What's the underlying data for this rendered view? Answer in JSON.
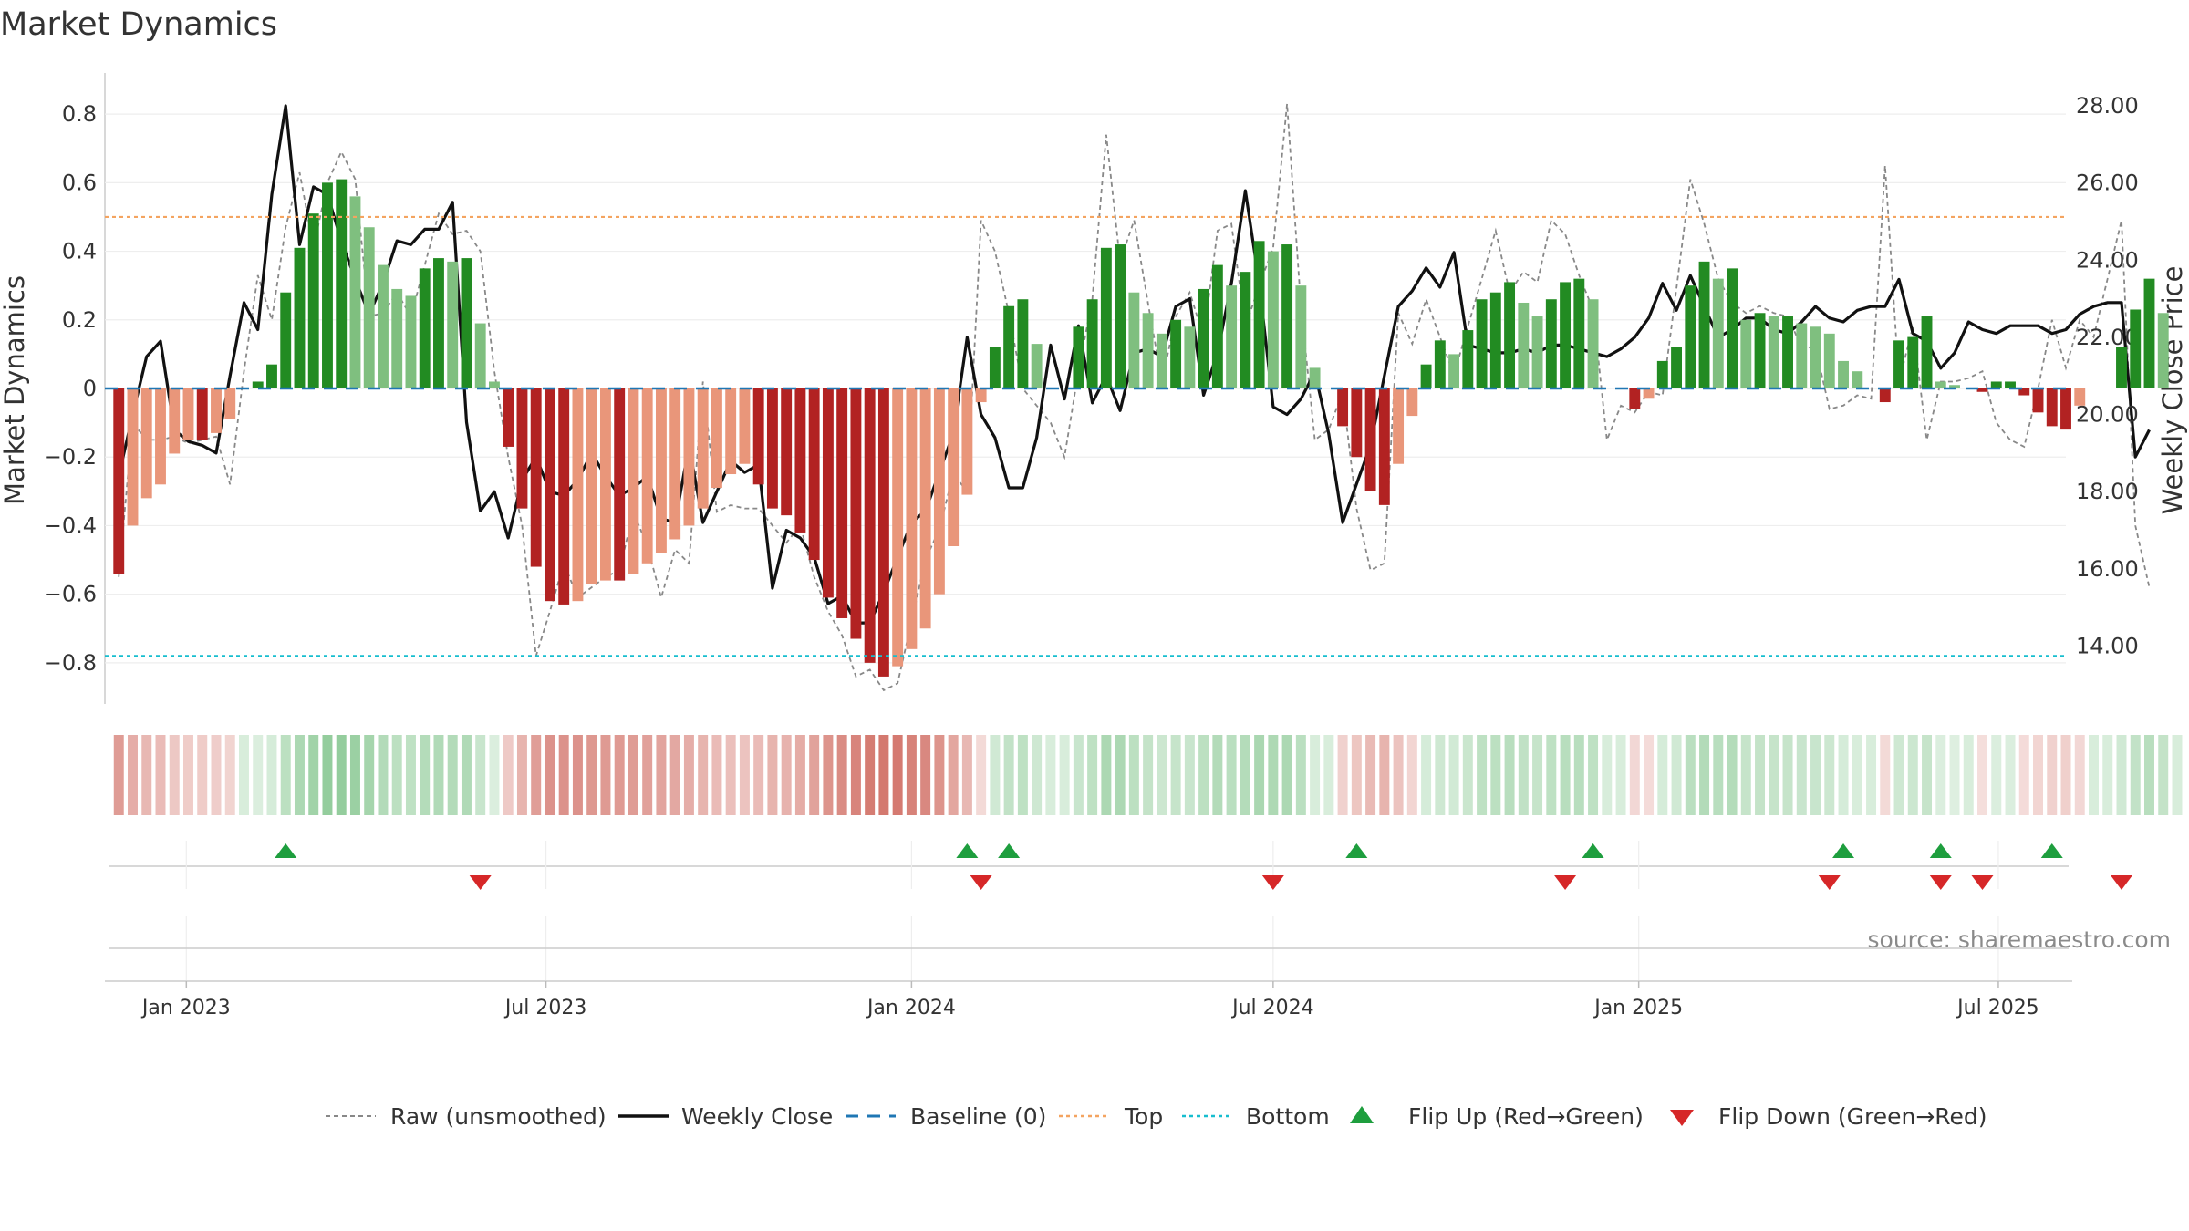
{
  "chart_data": {
    "type": "bar",
    "title": "Market Dynamics",
    "ylabel_left": "Market Dynamics",
    "ylabel_right": "Weekly Close Price",
    "ylim_left": [
      -0.92,
      0.92
    ],
    "ylim_right": [
      12.5,
      28.85
    ],
    "yticks_left": [
      "0.8",
      "0.6",
      "0.4",
      "0.2",
      "0",
      "−0.2",
      "−0.4",
      "−0.6",
      "−0.8"
    ],
    "yticks_left_values": [
      0.8,
      0.6,
      0.4,
      0.2,
      0,
      -0.2,
      -0.4,
      -0.6,
      -0.8
    ],
    "yticks_right": [
      "28.00",
      "26.00",
      "24.00",
      "22.00",
      "20.00",
      "18.00",
      "16.00",
      "14.00"
    ],
    "yticks_right_values": [
      28,
      26,
      24,
      22,
      20,
      18,
      16,
      14
    ],
    "x_range": [
      "2022-11-21",
      "2025-08-04"
    ],
    "xtick_labels": [
      "Jan 2023",
      "Jul 2023",
      "Jan 2024",
      "Jul 2024",
      "Jan 2025",
      "Jul 2025"
    ],
    "xtick_dates": [
      "2023-01-01",
      "2023-07-01",
      "2024-01-01",
      "2024-07-01",
      "2025-01-01",
      "2025-07-01"
    ],
    "start_date": "2022-11-28",
    "top_line": 0.5,
    "bottom_line": -0.78,
    "baseline": 0,
    "grid": true,
    "legend_position": "bottom-center",
    "source": "source: sharemaestro.com",
    "colors": {
      "strong_green": "#228b22",
      "light_green": "#7fbf7f",
      "strong_red": "#b22222",
      "light_red": "#e9967a",
      "close": "#111111",
      "raw": "#888888",
      "baseline": "#1f77b4",
      "top": "#f4a460",
      "bottom": "#17becf",
      "flip_up": "#1e9e3e",
      "flip_down": "#d62728"
    },
    "smoothed": [
      -0.54,
      -0.4,
      -0.32,
      -0.28,
      -0.19,
      -0.15,
      -0.15,
      -0.13,
      -0.09,
      0.0,
      0.02,
      0.07,
      0.28,
      0.41,
      0.51,
      0.6,
      0.61,
      0.56,
      0.47,
      0.36,
      0.29,
      0.27,
      0.35,
      0.38,
      0.37,
      0.38,
      0.19,
      0.02,
      -0.17,
      -0.35,
      -0.52,
      -0.62,
      -0.63,
      -0.62,
      -0.57,
      -0.56,
      -0.56,
      -0.54,
      -0.51,
      -0.48,
      -0.44,
      -0.4,
      -0.35,
      -0.29,
      -0.25,
      -0.22,
      -0.28,
      -0.35,
      -0.37,
      -0.42,
      -0.5,
      -0.61,
      -0.67,
      -0.73,
      -0.8,
      -0.84,
      -0.81,
      -0.76,
      -0.7,
      -0.6,
      -0.46,
      -0.31,
      -0.04,
      0.12,
      0.24,
      0.26,
      0.13,
      0.0,
      0.0,
      0.18,
      0.26,
      0.41,
      0.42,
      0.28,
      0.22,
      0.16,
      0.2,
      0.18,
      0.29,
      0.36,
      0.3,
      0.34,
      0.43,
      0.4,
      0.42,
      0.3,
      0.06,
      0.0,
      -0.11,
      -0.2,
      -0.3,
      -0.34,
      -0.22,
      -0.08,
      0.07,
      0.14,
      0.1,
      0.17,
      0.26,
      0.28,
      0.31,
      0.25,
      0.21,
      0.26,
      0.31,
      0.32,
      0.26,
      0.0,
      0.0,
      -0.06,
      -0.03,
      0.08,
      0.12,
      0.3,
      0.37,
      0.32,
      0.35,
      0.2,
      0.22,
      0.21,
      0.21,
      0.19,
      0.18,
      0.16,
      0.08,
      0.05,
      0.0,
      -0.04,
      0.14,
      0.15,
      0.21,
      0.02,
      0.01,
      0.0,
      -0.01,
      0.02,
      0.02,
      -0.02,
      -0.07,
      -0.11,
      -0.12,
      -0.05,
      0.0,
      0.0,
      0.12,
      0.23,
      0.32,
      0.22,
      0.0
    ],
    "raw": [
      -0.55,
      -0.1,
      -0.15,
      -0.15,
      -0.14,
      -0.16,
      -0.15,
      -0.14,
      -0.28,
      0.05,
      0.33,
      0.2,
      0.47,
      0.63,
      0.41,
      0.6,
      0.69,
      0.61,
      0.21,
      0.22,
      0.28,
      0.21,
      0.36,
      0.51,
      0.45,
      0.46,
      0.4,
      0.05,
      -0.2,
      -0.4,
      -0.78,
      -0.65,
      -0.51,
      -0.61,
      -0.58,
      -0.55,
      -0.53,
      -0.36,
      -0.46,
      -0.61,
      -0.47,
      -0.51,
      0.02,
      -0.36,
      -0.34,
      -0.35,
      -0.35,
      -0.4,
      -0.45,
      -0.4,
      -0.55,
      -0.65,
      -0.72,
      -0.84,
      -0.82,
      -0.88,
      -0.86,
      -0.68,
      -0.5,
      -0.41,
      -0.25,
      -0.3,
      0.49,
      0.4,
      0.22,
      0.0,
      -0.05,
      -0.1,
      -0.2,
      0.05,
      0.26,
      0.74,
      0.37,
      0.49,
      0.25,
      0.02,
      0.21,
      0.28,
      0.15,
      0.46,
      0.48,
      0.18,
      0.3,
      0.41,
      0.83,
      0.24,
      -0.15,
      -0.12,
      -0.01,
      -0.35,
      -0.53,
      -0.51,
      0.22,
      0.13,
      0.26,
      0.15,
      0.04,
      0.18,
      0.32,
      0.46,
      0.28,
      0.34,
      0.31,
      0.49,
      0.45,
      0.33,
      0.23,
      -0.15,
      -0.05,
      -0.07,
      -0.01,
      -0.02,
      0.29,
      0.61,
      0.48,
      0.32,
      0.25,
      0.22,
      0.24,
      0.22,
      0.21,
      0.12,
      0.12,
      -0.06,
      -0.05,
      -0.02,
      -0.03,
      0.65,
      0.02,
      0.18,
      -0.15,
      0.02,
      0.02,
      0.03,
      0.05,
      -0.1,
      -0.15,
      -0.17,
      0.0,
      0.2,
      0.06,
      0.2,
      0.15,
      0.32,
      0.49,
      -0.4,
      -0.58
    ],
    "close": [
      18.4,
      20.0,
      21.5,
      21.9,
      19.6,
      19.3,
      19.2,
      19.0,
      21.0,
      22.9,
      22.2,
      25.7,
      28.0,
      24.4,
      25.9,
      25.7,
      24.5,
      23.5,
      22.6,
      23.4,
      24.5,
      24.4,
      24.8,
      24.8,
      25.5,
      19.8,
      17.5,
      18.0,
      16.8,
      18.3,
      18.9,
      18.0,
      17.9,
      18.3,
      19.0,
      18.4,
      17.9,
      18.1,
      18.4,
      17.3,
      17.2,
      19.2,
      17.2,
      18.0,
      18.8,
      18.5,
      18.7,
      15.5,
      17.0,
      16.8,
      16.3,
      15.1,
      15.3,
      14.6,
      14.6,
      15.4,
      16.3,
      17.2,
      17.5,
      18.5,
      19.5,
      22.0,
      20.0,
      19.4,
      18.1,
      18.1,
      19.4,
      21.8,
      20.4,
      22.3,
      20.3,
      21.0,
      20.1,
      21.6,
      21.7,
      21.5,
      22.8,
      23.0,
      20.5,
      21.6,
      23.4,
      25.8,
      23.4,
      20.2,
      20.0,
      20.4,
      21.1,
      19.5,
      17.2,
      18.2,
      19.2,
      21.0,
      22.8,
      23.2,
      23.8,
      23.3,
      24.2,
      21.8,
      21.7,
      21.6,
      21.6,
      21.7,
      21.6,
      21.8,
      21.8,
      21.7,
      21.6,
      21.5,
      21.7,
      22.0,
      22.5,
      23.4,
      22.7,
      23.6,
      22.8,
      22.0,
      22.2,
      22.5,
      22.5,
      22.2,
      22.1,
      22.4,
      22.8,
      22.5,
      22.4,
      22.7,
      22.8,
      22.8,
      23.5,
      22.1,
      21.9,
      21.2,
      21.6,
      22.4,
      22.2,
      22.1,
      22.3,
      22.3,
      22.3,
      22.1,
      22.2,
      22.6,
      22.8,
      22.9,
      22.9,
      18.9,
      19.6
    ],
    "flip_up_weeks": [
      12,
      61,
      64,
      89,
      106,
      124,
      131,
      139
    ],
    "flip_down_weeks": [
      26,
      62,
      83,
      104,
      123,
      131,
      134,
      144
    ]
  },
  "legend": {
    "raw": "Raw (unsmoothed)",
    "close": "Weekly Close",
    "baseline": "Baseline (0)",
    "top": "Top",
    "bottom": "Bottom",
    "flip_up": "Flip Up (Red→Green)",
    "flip_down": "Flip Down (Green→Red)"
  }
}
